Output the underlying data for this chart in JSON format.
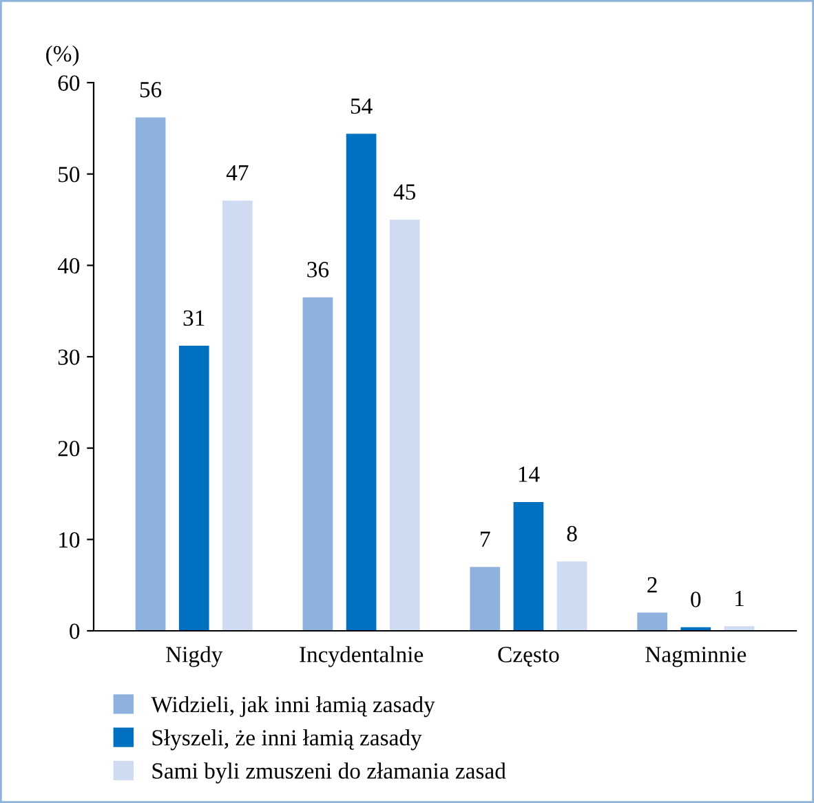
{
  "chart_data": {
    "type": "bar",
    "ylabel": "(%)",
    "categories": [
      "Nigdy",
      "Incydentalnie",
      "Często",
      "Nagminnie"
    ],
    "series": [
      {
        "name": "Widzieli, jak inni łamią zasady",
        "color": "#8eb1dd",
        "values": [
          56.2,
          36.5,
          7.0,
          2.0
        ],
        "value_labels": [
          "56",
          "36",
          "7",
          "2"
        ]
      },
      {
        "name": "Słyszeli, że inni łamią zasady",
        "color": "#0070c0",
        "values": [
          31.2,
          54.4,
          14.1,
          0.4
        ],
        "value_labels": [
          "31",
          "54",
          "14",
          "0"
        ]
      },
      {
        "name": "Sami byli zmuszeni do złamania zasad",
        "color": "#cfdbf0",
        "values": [
          47.1,
          45.0,
          7.6,
          0.5
        ],
        "value_labels": [
          "47",
          "45",
          "8",
          "1"
        ]
      }
    ],
    "ylim": [
      0,
      60
    ],
    "yticks": [
      0,
      10,
      20,
      30,
      40,
      50,
      60
    ],
    "grid": false,
    "legend": "bottom"
  }
}
